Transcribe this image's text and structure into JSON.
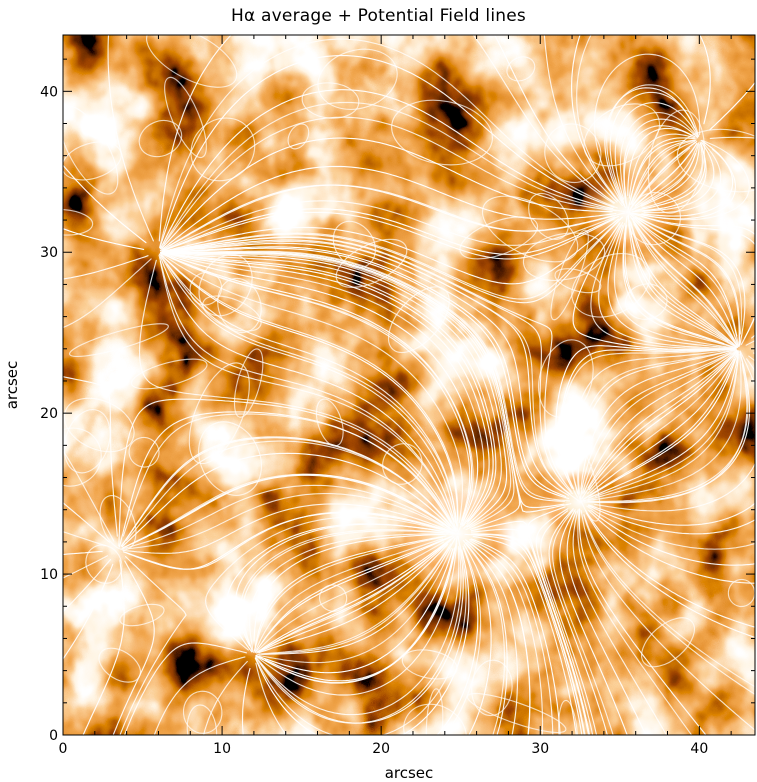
{
  "chart_data": {
    "type": "heatmap",
    "title": "Hα average + Potential Field lines",
    "xlabel": "arcsec",
    "ylabel": "arcsec",
    "xlim": [
      0,
      43.5
    ],
    "ylim": [
      0,
      43.5
    ],
    "xticks": [
      0,
      10,
      20,
      30,
      40
    ],
    "yticks": [
      0,
      10,
      20,
      30,
      40
    ],
    "colormap": [
      "#000000",
      "#5a1000",
      "#b83a00",
      "#e46414",
      "#f8a050",
      "#ffe6c0",
      "#ffffff"
    ],
    "overlay_color": "#ffffff",
    "field_sources": [
      {
        "x": 24.8,
        "y": 12.5,
        "strength": 1.0
      },
      {
        "x": 32.5,
        "y": 14.5,
        "strength": 0.7
      },
      {
        "x": 35.5,
        "y": 32.5,
        "strength": 0.9
      },
      {
        "x": 3.5,
        "y": 11.5,
        "strength": -0.6
      },
      {
        "x": 6.0,
        "y": 30.0,
        "strength": -0.5
      },
      {
        "x": 42.5,
        "y": 24.0,
        "strength": -0.7
      },
      {
        "x": 12.0,
        "y": 5.0,
        "strength": -0.5
      },
      {
        "x": 40.0,
        "y": 37.0,
        "strength": -0.4
      }
    ]
  }
}
